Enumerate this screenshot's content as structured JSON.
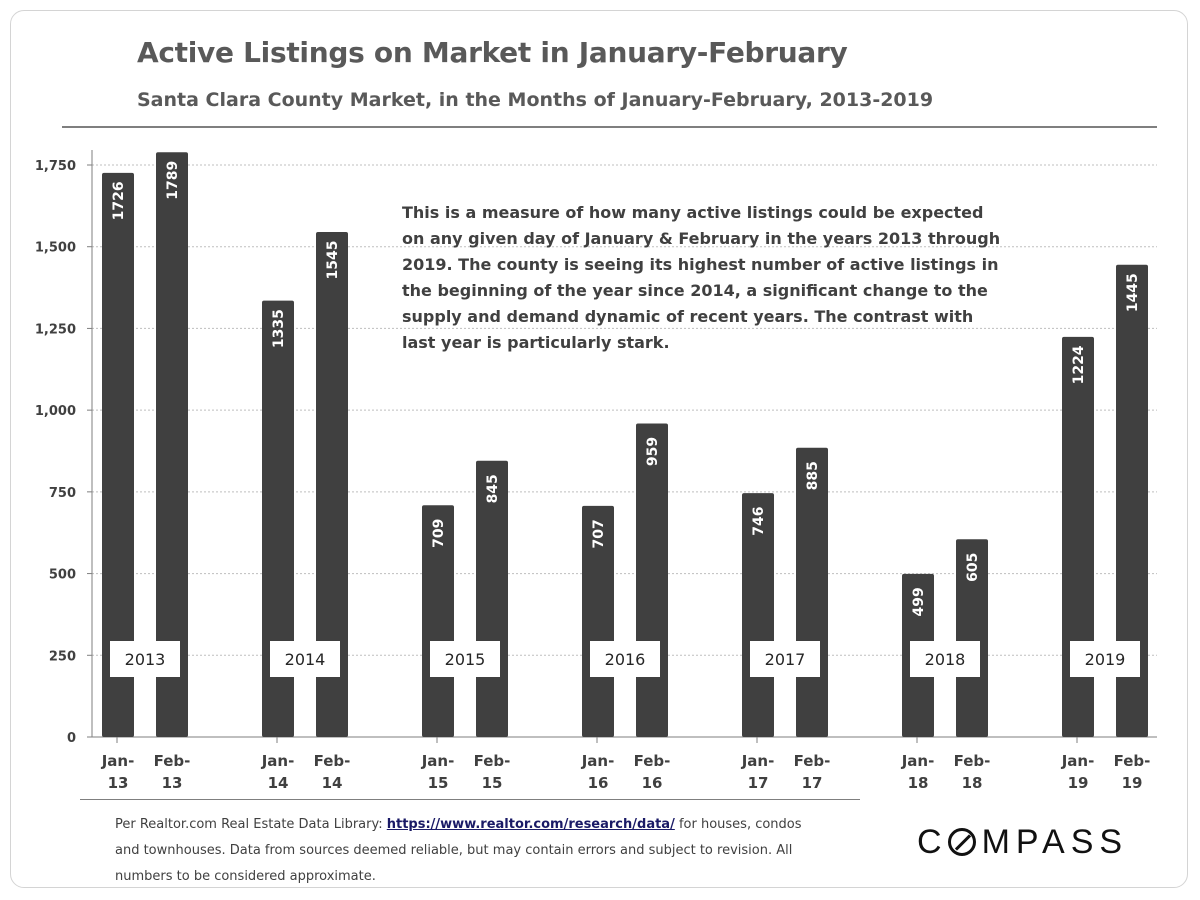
{
  "title": "Active Listings on Market in January-February",
  "subtitle": "Santa Clara County Market, in the Months of January-February,  2013-2019",
  "note": "This is a measure of how many active listings could be expected on any given day of January & February in the years 2013 through 2019. The county is seeing its highest number of active listings in the beginning of the year since 2014, a significant change to the supply and demand dynamic of recent years. The contrast with last year is particularly stark.",
  "footnote": {
    "prefix": "Per Realtor.com  Real Estate Data Library: ",
    "link_text": "https://www.realtor.com/research/data/",
    "suffix": " for houses, condos and townhouses. Data from sources deemed reliable, but may contain errors and subject to revision. All numbers to be considered approximate."
  },
  "logo": {
    "before": "C",
    "after": "MPASS"
  },
  "colors": {
    "bar": "#404040",
    "grid": "#bfbfbf",
    "text": "#404040"
  },
  "chart_data": {
    "type": "bar",
    "categories": [
      "Jan-13",
      "Feb-13",
      "Jan-14",
      "Feb-14",
      "Jan-15",
      "Feb-15",
      "Jan-16",
      "Feb-16",
      "Jan-17",
      "Feb-17",
      "Jan-18",
      "Feb-18",
      "Jan-19",
      "Feb-19"
    ],
    "tick_labels": [
      [
        "Jan-",
        "13"
      ],
      [
        "Feb-",
        "13"
      ],
      [
        "Jan-",
        "14"
      ],
      [
        "Feb-",
        "14"
      ],
      [
        "Jan-",
        "15"
      ],
      [
        "Feb-",
        "15"
      ],
      [
        "Jan-",
        "16"
      ],
      [
        "Feb-",
        "16"
      ],
      [
        "Jan-",
        "17"
      ],
      [
        "Feb-",
        "17"
      ],
      [
        "Jan-",
        "18"
      ],
      [
        "Feb-",
        "18"
      ],
      [
        "Jan-",
        "19"
      ],
      [
        "Feb-",
        "19"
      ]
    ],
    "values": [
      1726,
      1789,
      1335,
      1545,
      709,
      845,
      707,
      959,
      746,
      885,
      499,
      605,
      1224,
      1445
    ],
    "group_labels": [
      "2013",
      "2014",
      "2015",
      "2016",
      "2017",
      "2018",
      "2019"
    ],
    "yticks": [
      "0",
      "250",
      "500",
      "750",
      "1,000",
      "1,250",
      "1,500",
      "1,750"
    ],
    "ylim": [
      0,
      1800
    ],
    "grid": true,
    "legend": "none",
    "title": "Active Listings on Market in January-February",
    "subtitle": "Santa Clara County Market, in the Months of January-February,  2013-2019",
    "xlabel": "",
    "ylabel": ""
  }
}
